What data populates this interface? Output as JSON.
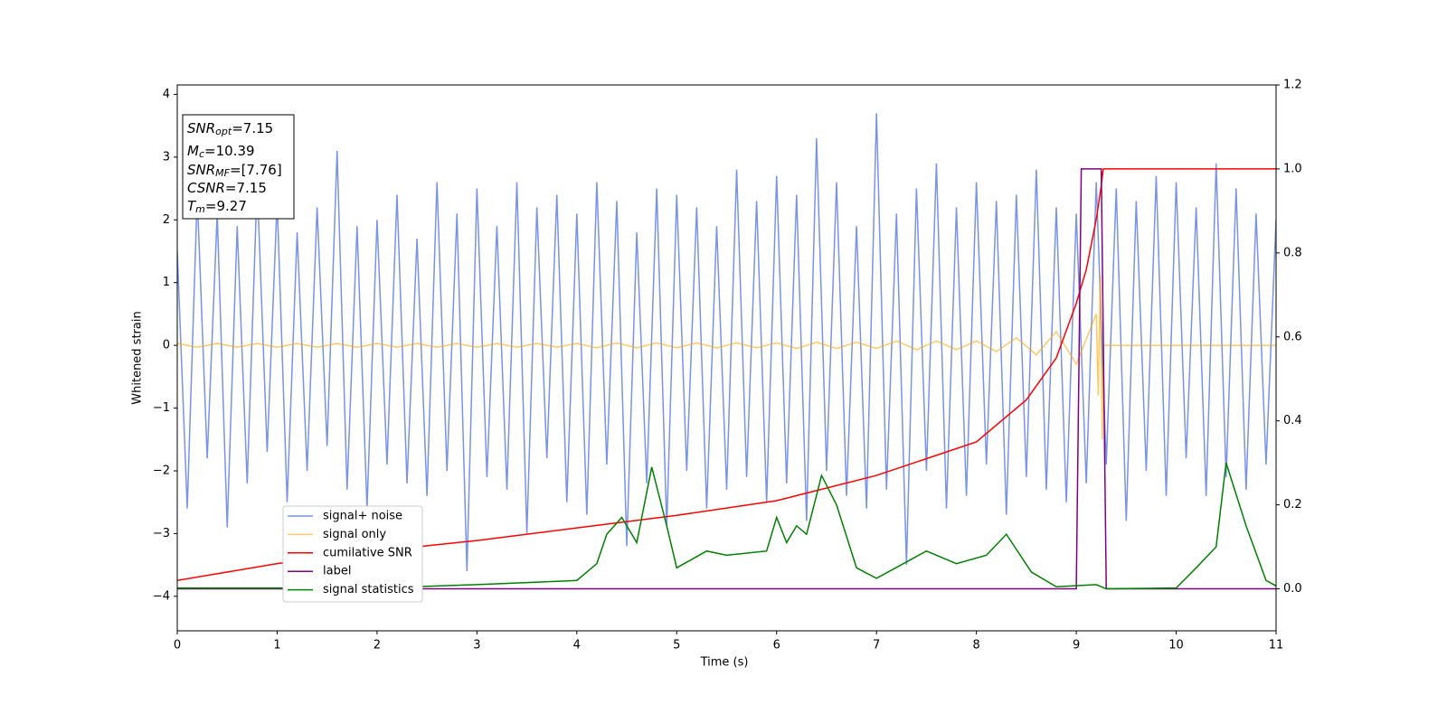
{
  "chart_data": {
    "type": "line",
    "xlabel": "Time (s)",
    "ylabel": "Whitened strain",
    "xlim": [
      0,
      11
    ],
    "xticks": [
      0,
      1,
      2,
      3,
      4,
      5,
      6,
      7,
      8,
      9,
      10,
      11
    ],
    "ylim": [
      -4.55,
      4.15
    ],
    "yticks": [
      {
        "value": -4,
        "label": "−4"
      },
      {
        "value": -3,
        "label": "−3"
      },
      {
        "value": -2,
        "label": "−2"
      },
      {
        "value": -1,
        "label": "−1"
      },
      0,
      1,
      2,
      3,
      4
    ],
    "y2lim": [
      -0.1,
      1.2
    ],
    "y2ticks": [
      {
        "value": 0,
        "label": "0.0"
      },
      0.2,
      0.4,
      0.6,
      0.8,
      {
        "value": 1,
        "label": "1.0"
      },
      1.2
    ],
    "annotation": [
      {
        "text": "SNR",
        "sub": "opt",
        "value": "=7.15"
      },
      {
        "text": "M",
        "sub": "c",
        "value": "=10.39"
      },
      {
        "text": "SNR",
        "sub": "MF",
        "value": "=[7.76]"
      },
      {
        "text": "CSNR",
        "value": "=7.15"
      },
      {
        "text": "T",
        "sub": "m",
        "value": "=9.27"
      }
    ],
    "series": [
      {
        "name": "signal+ noise",
        "color": "#7893e8",
        "x": [
          0,
          0.1,
          0.2,
          0.3,
          0.4,
          0.5,
          0.6,
          0.7,
          0.8,
          0.9,
          1,
          1.1,
          1.2,
          1.3,
          1.4,
          1.5,
          1.6,
          1.7,
          1.8,
          1.9,
          2,
          2.1,
          2.2,
          2.3,
          2.4,
          2.5,
          2.6,
          2.7,
          2.8,
          2.9,
          3,
          3.1,
          3.2,
          3.3,
          3.4,
          3.5,
          3.6,
          3.7,
          3.8,
          3.9,
          4,
          4.1,
          4.2,
          4.3,
          4.4,
          4.5,
          4.6,
          4.7,
          4.8,
          4.9,
          5,
          5.1,
          5.2,
          5.3,
          5.4,
          5.5,
          5.6,
          5.7,
          5.8,
          5.9,
          6,
          6.1,
          6.2,
          6.3,
          6.4,
          6.5,
          6.6,
          6.7,
          6.8,
          6.9,
          7,
          7.1,
          7.2,
          7.3,
          7.4,
          7.5,
          7.6,
          7.7,
          7.8,
          7.9,
          8,
          8.1,
          8.2,
          8.3,
          8.4,
          8.5,
          8.6,
          8.7,
          8.8,
          8.9,
          9,
          9.1,
          9.2,
          9.3,
          9.4,
          9.5,
          9.6,
          9.7,
          9.8,
          9.9,
          10,
          10.1,
          10.2,
          10.3,
          10.4,
          10.5,
          10.6,
          10.7,
          10.8,
          10.9,
          11
        ],
        "values": [
          1.5,
          -2.6,
          2.4,
          -1.8,
          2.1,
          -2.9,
          1.9,
          -2.2,
          2.6,
          -1.7,
          2.3,
          -2.5,
          1.8,
          -2.0,
          2.2,
          -1.6,
          3.1,
          -2.3,
          1.9,
          -2.6,
          2.0,
          -1.9,
          2.4,
          -2.2,
          1.7,
          -2.4,
          2.6,
          -2.0,
          2.1,
          -3.6,
          2.5,
          -2.1,
          1.9,
          -2.3,
          2.6,
          -3.0,
          2.2,
          -1.8,
          2.4,
          -2.5,
          2.1,
          -2.7,
          2.6,
          -1.9,
          2.3,
          -3.2,
          1.8,
          -2.2,
          2.5,
          -2.9,
          2.4,
          -2.0,
          2.2,
          -2.6,
          1.9,
          -2.3,
          2.8,
          -2.1,
          2.3,
          -2.5,
          2.7,
          -2.2,
          2.4,
          -2.8,
          3.3,
          -2.0,
          2.6,
          -2.4,
          1.9,
          -2.6,
          3.7,
          -2.3,
          2.1,
          -3.5,
          2.5,
          -2.0,
          2.9,
          -2.6,
          2.2,
          -2.4,
          2.6,
          -1.9,
          2.3,
          -2.7,
          2.4,
          -2.1,
          2.8,
          -2.3,
          2.2,
          -2.5,
          2.1,
          -2.2,
          2.6,
          -1.9,
          2.5,
          -2.8,
          2.3,
          -2.0,
          2.7,
          -2.4,
          2.6,
          -1.8,
          2.2,
          -2.4,
          2.9,
          -2.1,
          2.5,
          -2.3,
          2.1,
          -1.9,
          2.0
        ]
      },
      {
        "name": "signal only",
        "color": "#ffa500",
        "x": [
          0,
          0.2,
          0.4,
          0.6,
          0.8,
          1,
          1.2,
          1.4,
          1.6,
          1.8,
          2,
          2.2,
          2.4,
          2.6,
          2.8,
          3,
          3.2,
          3.4,
          3.6,
          3.8,
          4,
          4.2,
          4.4,
          4.6,
          4.8,
          5,
          5.2,
          5.4,
          5.6,
          5.8,
          6,
          6.2,
          6.4,
          6.6,
          6.8,
          7,
          7.2,
          7.4,
          7.6,
          7.8,
          8,
          8.2,
          8.4,
          8.6,
          8.8,
          9,
          9.2,
          9.22,
          9.24,
          9.26,
          9.27,
          11
        ],
        "values": [
          0.03,
          -0.03,
          0.03,
          -0.03,
          0.03,
          -0.03,
          0.03,
          -0.03,
          0.03,
          -0.03,
          0.03,
          -0.03,
          0.03,
          -0.03,
          0.03,
          -0.03,
          0.03,
          -0.03,
          0.03,
          -0.03,
          0.03,
          -0.04,
          0.04,
          -0.04,
          0.04,
          -0.04,
          0.04,
          -0.04,
          0.04,
          -0.04,
          0.04,
          -0.05,
          0.05,
          -0.05,
          0.05,
          -0.05,
          0.07,
          -0.07,
          0.07,
          -0.07,
          0.07,
          -0.1,
          0.12,
          -0.15,
          0.22,
          -0.3,
          0.5,
          -0.8,
          1.1,
          -1.5,
          0,
          0
        ]
      },
      {
        "name": "cumilative SNR",
        "color": "#ff0000",
        "axis": "y2",
        "x": [
          0,
          1,
          2,
          3,
          4,
          5,
          6,
          7,
          7.5,
          8,
          8.5,
          8.8,
          9,
          9.1,
          9.2,
          9.25,
          9.27,
          11
        ],
        "values": [
          0.02,
          0.06,
          0.09,
          0.115,
          0.145,
          0.175,
          0.21,
          0.27,
          0.31,
          0.35,
          0.45,
          0.55,
          0.68,
          0.76,
          0.88,
          0.96,
          1.0,
          1.0
        ]
      },
      {
        "name": "label",
        "color": "#800080",
        "axis": "y2",
        "x": [
          0,
          9.0,
          9.05,
          9.25,
          9.3,
          11
        ],
        "values": [
          0,
          0,
          1,
          1,
          0,
          0
        ]
      },
      {
        "name": "signal statistics",
        "color": "#008000",
        "axis": "y2",
        "x": [
          0,
          2,
          3,
          3.5,
          4,
          4.2,
          4.3,
          4.45,
          4.6,
          4.75,
          4.9,
          5,
          5.3,
          5.5,
          5.9,
          6,
          6.1,
          6.2,
          6.3,
          6.45,
          6.6,
          6.8,
          7,
          7.5,
          7.8,
          8.1,
          8.3,
          8.55,
          8.8,
          9.2,
          9.3,
          10,
          10.2,
          10.4,
          10.5,
          10.7,
          10.9,
          11
        ],
        "values": [
          0.002,
          0.002,
          0.01,
          0.015,
          0.02,
          0.06,
          0.13,
          0.17,
          0.11,
          0.29,
          0.15,
          0.05,
          0.09,
          0.08,
          0.09,
          0.17,
          0.11,
          0.15,
          0.13,
          0.27,
          0.2,
          0.05,
          0.025,
          0.09,
          0.06,
          0.08,
          0.13,
          0.04,
          0.005,
          0.01,
          0.0,
          0.002,
          0.05,
          0.1,
          0.3,
          0.15,
          0.02,
          0.007
        ]
      }
    ]
  }
}
